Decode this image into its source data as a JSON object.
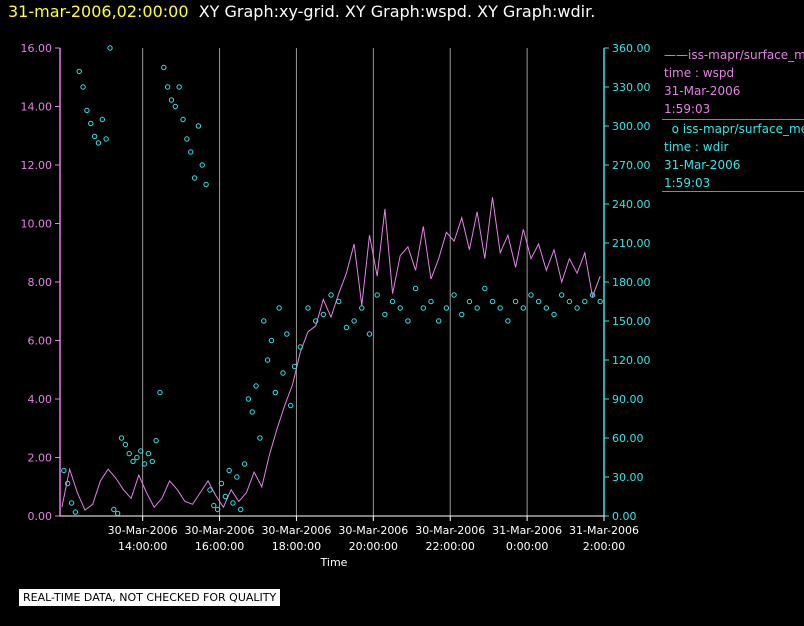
{
  "header": {
    "timestamp": "31-mar-2006,02:00:00",
    "graphs": "XY Graph:xy-grid.  XY Graph:wspd.  XY Graph:wdir."
  },
  "legend": {
    "series1": {
      "name": "iss-mapr/surface_met",
      "x_label": "time : wspd",
      "date": "31-Mar-2006",
      "time": "1:59:03"
    },
    "series2": {
      "name": "iss-mapr/surface_met",
      "x_label": "time : wdir",
      "date": "31-Mar-2006",
      "time": "1:59:03"
    }
  },
  "notice": "REAL-TIME DATA, NOT CHECKED FOR QUALITY",
  "colors": {
    "wspd": "#e680e6",
    "wdir": "#33e6e6",
    "grid": "#999999",
    "timestamp": "#ffff33"
  },
  "chart_data": {
    "type": "line",
    "xlabel": "Time",
    "x_range_hours": [
      -12.15,
      2.0
    ],
    "x_ticks": [
      {
        "hour": -10,
        "date": "30-Mar-2006",
        "time": "14:00:00"
      },
      {
        "hour": -8,
        "date": "30-Mar-2006",
        "time": "16:00:00"
      },
      {
        "hour": -6,
        "date": "30-Mar-2006",
        "time": "18:00:00"
      },
      {
        "hour": -4,
        "date": "30-Mar-2006",
        "time": "20:00:00"
      },
      {
        "hour": -2,
        "date": "30-Mar-2006",
        "time": "22:00:00"
      },
      {
        "hour": 0,
        "date": "31-Mar-2006",
        "time": "0:00:00"
      },
      {
        "hour": 2,
        "date": "31-Mar-2006",
        "time": "2:00:00"
      }
    ],
    "y_left": {
      "label": "wspd",
      "range": [
        0,
        16
      ],
      "ticks": [
        "0.00",
        "2.00",
        "4.00",
        "6.00",
        "8.00",
        "10.00",
        "12.00",
        "14.00",
        "16.00"
      ]
    },
    "y_right": {
      "label": "wdir",
      "range": [
        0,
        360
      ],
      "ticks": [
        "0.00",
        "30.00",
        "60.00",
        "90.00",
        "120.00",
        "150.00",
        "180.00",
        "210.00",
        "240.00",
        "270.00",
        "300.00",
        "330.00",
        "360.00"
      ]
    },
    "series": [
      {
        "name": "wspd",
        "style": "line",
        "x": [
          -12.1,
          -11.9,
          -11.7,
          -11.5,
          -11.3,
          -11.1,
          -10.9,
          -10.7,
          -10.5,
          -10.3,
          -10.1,
          -9.9,
          -9.7,
          -9.5,
          -9.3,
          -9.1,
          -8.9,
          -8.7,
          -8.5,
          -8.3,
          -8.1,
          -7.9,
          -7.7,
          -7.5,
          -7.3,
          -7.1,
          -6.9,
          -6.7,
          -6.5,
          -6.3,
          -6.1,
          -5.9,
          -5.7,
          -5.5,
          -5.3,
          -5.1,
          -4.9,
          -4.7,
          -4.5,
          -4.3,
          -4.1,
          -3.9,
          -3.7,
          -3.5,
          -3.3,
          -3.1,
          -2.9,
          -2.7,
          -2.5,
          -2.3,
          -2.1,
          -1.9,
          -1.7,
          -1.5,
          -1.3,
          -1.1,
          -0.9,
          -0.7,
          -0.5,
          -0.3,
          -0.1,
          0.1,
          0.3,
          0.5,
          0.7,
          0.9,
          1.1,
          1.3,
          1.5,
          1.7,
          1.9
        ],
        "y": [
          0.3,
          1.6,
          0.8,
          0.2,
          0.4,
          1.2,
          1.6,
          1.3,
          0.9,
          0.6,
          1.4,
          0.8,
          0.3,
          0.6,
          1.2,
          0.9,
          0.5,
          0.4,
          0.8,
          1.2,
          0.7,
          0.3,
          0.9,
          0.5,
          0.8,
          1.5,
          1.0,
          2.1,
          3.0,
          3.8,
          4.5,
          5.6,
          6.3,
          6.5,
          7.4,
          6.8,
          7.6,
          8.3,
          9.3,
          7.2,
          9.6,
          8.2,
          10.5,
          7.6,
          8.9,
          9.2,
          8.4,
          9.9,
          8.1,
          8.8,
          9.7,
          9.4,
          10.2,
          9.1,
          10.4,
          8.8,
          10.9,
          9.0,
          9.6,
          8.5,
          9.8,
          8.8,
          9.3,
          8.4,
          9.1,
          8.0,
          8.8,
          8.3,
          9.0,
          7.5,
          8.2
        ]
      },
      {
        "name": "wdir",
        "style": "points",
        "x": [
          -12.05,
          -11.95,
          -11.85,
          -11.75,
          -11.65,
          -11.55,
          -11.45,
          -11.35,
          -11.25,
          -11.15,
          -11.05,
          -10.95,
          -10.85,
          -10.75,
          -10.65,
          -10.55,
          -10.45,
          -10.35,
          -10.25,
          -10.15,
          -10.05,
          -9.95,
          -9.85,
          -9.75,
          -9.65,
          -9.55,
          -9.45,
          -9.35,
          -9.25,
          -9.15,
          -9.05,
          -8.95,
          -8.85,
          -8.75,
          -8.65,
          -8.55,
          -8.45,
          -8.35,
          -8.25,
          -8.15,
          -8.05,
          -7.95,
          -7.85,
          -7.75,
          -7.65,
          -7.55,
          -7.45,
          -7.35,
          -7.25,
          -7.15,
          -7.05,
          -6.95,
          -6.85,
          -6.75,
          -6.65,
          -6.55,
          -6.45,
          -6.35,
          -6.25,
          -6.15,
          -6.05,
          -5.9,
          -5.7,
          -5.5,
          -5.3,
          -5.1,
          -4.9,
          -4.7,
          -4.5,
          -4.3,
          -4.1,
          -3.9,
          -3.7,
          -3.5,
          -3.3,
          -3.1,
          -2.9,
          -2.7,
          -2.5,
          -2.3,
          -2.1,
          -1.9,
          -1.7,
          -1.5,
          -1.3,
          -1.1,
          -0.9,
          -0.7,
          -0.5,
          -0.3,
          -0.1,
          0.1,
          0.3,
          0.5,
          0.7,
          0.9,
          1.1,
          1.3,
          1.5,
          1.7,
          1.9
        ],
        "y": [
          35,
          25,
          10,
          3,
          342,
          330,
          312,
          302,
          292,
          287,
          305,
          290,
          360,
          5,
          2,
          60,
          55,
          48,
          42,
          45,
          50,
          40,
          48,
          42,
          58,
          95,
          345,
          330,
          320,
          315,
          330,
          305,
          290,
          280,
          260,
          300,
          270,
          255,
          20,
          8,
          5,
          25,
          15,
          35,
          10,
          30,
          5,
          40,
          90,
          80,
          100,
          60,
          150,
          120,
          135,
          95,
          160,
          110,
          140,
          85,
          115,
          130,
          160,
          150,
          155,
          170,
          165,
          145,
          150,
          160,
          140,
          170,
          155,
          165,
          160,
          150,
          175,
          160,
          165,
          150,
          160,
          170,
          155,
          165,
          160,
          175,
          165,
          160,
          150,
          165,
          160,
          170,
          165,
          160,
          155,
          170,
          165,
          160,
          165,
          170,
          165
        ]
      }
    ]
  }
}
